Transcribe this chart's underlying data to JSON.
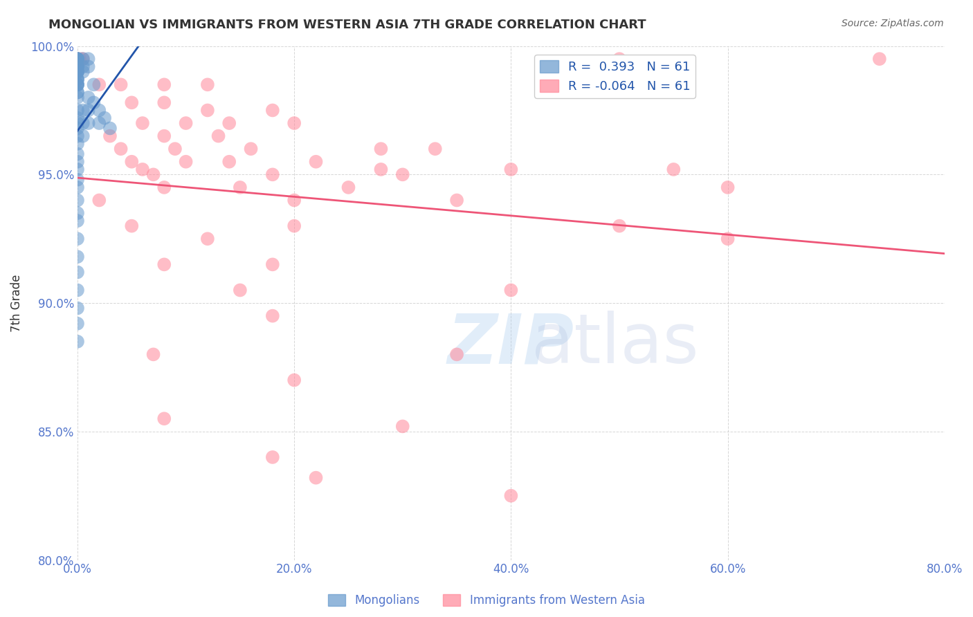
{
  "title": "MONGOLIAN VS IMMIGRANTS FROM WESTERN ASIA 7TH GRADE CORRELATION CHART",
  "source": "Source: ZipAtlas.com",
  "xlabel": "",
  "ylabel": "7th Grade",
  "xlim": [
    0.0,
    80.0
  ],
  "ylim": [
    80.0,
    100.0
  ],
  "xticks": [
    0.0,
    20.0,
    40.0,
    60.0,
    80.0
  ],
  "yticks": [
    80.0,
    85.0,
    90.0,
    95.0,
    100.0
  ],
  "blue_R": 0.393,
  "pink_R": -0.064,
  "N": 61,
  "blue_color": "#6699CC",
  "pink_color": "#FF8899",
  "blue_line_color": "#2255AA",
  "pink_line_color": "#EE5577",
  "axis_label_color": "#5577CC",
  "watermark": "ZIPatlas",
  "legend_box_color": "#FFFFFF",
  "blue_dots": [
    [
      0.0,
      99.5
    ],
    [
      0.0,
      99.5
    ],
    [
      0.0,
      99.5
    ],
    [
      0.0,
      99.5
    ],
    [
      0.0,
      99.5
    ],
    [
      0.0,
      99.2
    ],
    [
      0.0,
      99.2
    ],
    [
      0.0,
      99.2
    ],
    [
      0.0,
      99.2
    ],
    [
      0.0,
      99.0
    ],
    [
      0.0,
      99.0
    ],
    [
      0.0,
      99.0
    ],
    [
      0.0,
      99.0
    ],
    [
      0.0,
      98.7
    ],
    [
      0.0,
      98.7
    ],
    [
      0.0,
      98.7
    ],
    [
      0.0,
      98.5
    ],
    [
      0.0,
      98.5
    ],
    [
      0.0,
      98.5
    ],
    [
      0.0,
      98.5
    ],
    [
      0.0,
      98.2
    ],
    [
      0.0,
      98.2
    ],
    [
      0.0,
      98.0
    ],
    [
      0.5,
      99.5
    ],
    [
      0.5,
      99.2
    ],
    [
      0.5,
      99.0
    ],
    [
      1.0,
      99.5
    ],
    [
      1.0,
      99.2
    ],
    [
      0.0,
      97.5
    ],
    [
      0.0,
      97.0
    ],
    [
      0.0,
      97.2
    ],
    [
      0.0,
      96.8
    ],
    [
      0.0,
      96.5
    ],
    [
      0.0,
      96.2
    ],
    [
      0.0,
      95.8
    ],
    [
      0.0,
      95.5
    ],
    [
      0.0,
      95.2
    ],
    [
      0.0,
      94.8
    ],
    [
      0.0,
      94.5
    ],
    [
      0.0,
      94.0
    ],
    [
      0.0,
      93.5
    ],
    [
      0.0,
      93.2
    ],
    [
      0.5,
      97.5
    ],
    [
      0.5,
      97.0
    ],
    [
      0.5,
      96.5
    ],
    [
      1.0,
      98.0
    ],
    [
      1.0,
      97.5
    ],
    [
      1.0,
      97.0
    ],
    [
      1.5,
      98.5
    ],
    [
      1.5,
      97.8
    ],
    [
      2.0,
      97.5
    ],
    [
      2.0,
      97.0
    ],
    [
      2.5,
      97.2
    ],
    [
      3.0,
      96.8
    ],
    [
      0.0,
      92.5
    ],
    [
      0.0,
      91.8
    ],
    [
      0.0,
      91.2
    ],
    [
      0.0,
      90.5
    ],
    [
      0.0,
      89.8
    ],
    [
      0.0,
      89.2
    ],
    [
      0.0,
      88.5
    ]
  ],
  "pink_dots": [
    [
      0.2,
      99.5
    ],
    [
      0.5,
      99.5
    ],
    [
      50.0,
      99.5
    ],
    [
      74.0,
      99.5
    ],
    [
      2.0,
      98.5
    ],
    [
      4.0,
      98.5
    ],
    [
      8.0,
      98.5
    ],
    [
      12.0,
      98.5
    ],
    [
      5.0,
      97.8
    ],
    [
      8.0,
      97.8
    ],
    [
      12.0,
      97.5
    ],
    [
      18.0,
      97.5
    ],
    [
      6.0,
      97.0
    ],
    [
      10.0,
      97.0
    ],
    [
      14.0,
      97.0
    ],
    [
      20.0,
      97.0
    ],
    [
      3.0,
      96.5
    ],
    [
      8.0,
      96.5
    ],
    [
      13.0,
      96.5
    ],
    [
      4.0,
      96.0
    ],
    [
      9.0,
      96.0
    ],
    [
      16.0,
      96.0
    ],
    [
      28.0,
      96.0
    ],
    [
      33.0,
      96.0
    ],
    [
      5.0,
      95.5
    ],
    [
      10.0,
      95.5
    ],
    [
      14.0,
      95.5
    ],
    [
      22.0,
      95.5
    ],
    [
      6.0,
      95.2
    ],
    [
      28.0,
      95.2
    ],
    [
      40.0,
      95.2
    ],
    [
      55.0,
      95.2
    ],
    [
      7.0,
      95.0
    ],
    [
      18.0,
      95.0
    ],
    [
      30.0,
      95.0
    ],
    [
      8.0,
      94.5
    ],
    [
      15.0,
      94.5
    ],
    [
      25.0,
      94.5
    ],
    [
      60.0,
      94.5
    ],
    [
      2.0,
      94.0
    ],
    [
      20.0,
      94.0
    ],
    [
      35.0,
      94.0
    ],
    [
      5.0,
      93.0
    ],
    [
      20.0,
      93.0
    ],
    [
      50.0,
      93.0
    ],
    [
      12.0,
      92.5
    ],
    [
      60.0,
      92.5
    ],
    [
      8.0,
      91.5
    ],
    [
      18.0,
      91.5
    ],
    [
      15.0,
      90.5
    ],
    [
      40.0,
      90.5
    ],
    [
      18.0,
      89.5
    ],
    [
      7.0,
      88.0
    ],
    [
      35.0,
      88.0
    ],
    [
      20.0,
      87.0
    ],
    [
      8.0,
      85.5
    ],
    [
      30.0,
      85.2
    ],
    [
      18.0,
      84.0
    ],
    [
      22.0,
      83.2
    ],
    [
      40.0,
      82.5
    ]
  ]
}
